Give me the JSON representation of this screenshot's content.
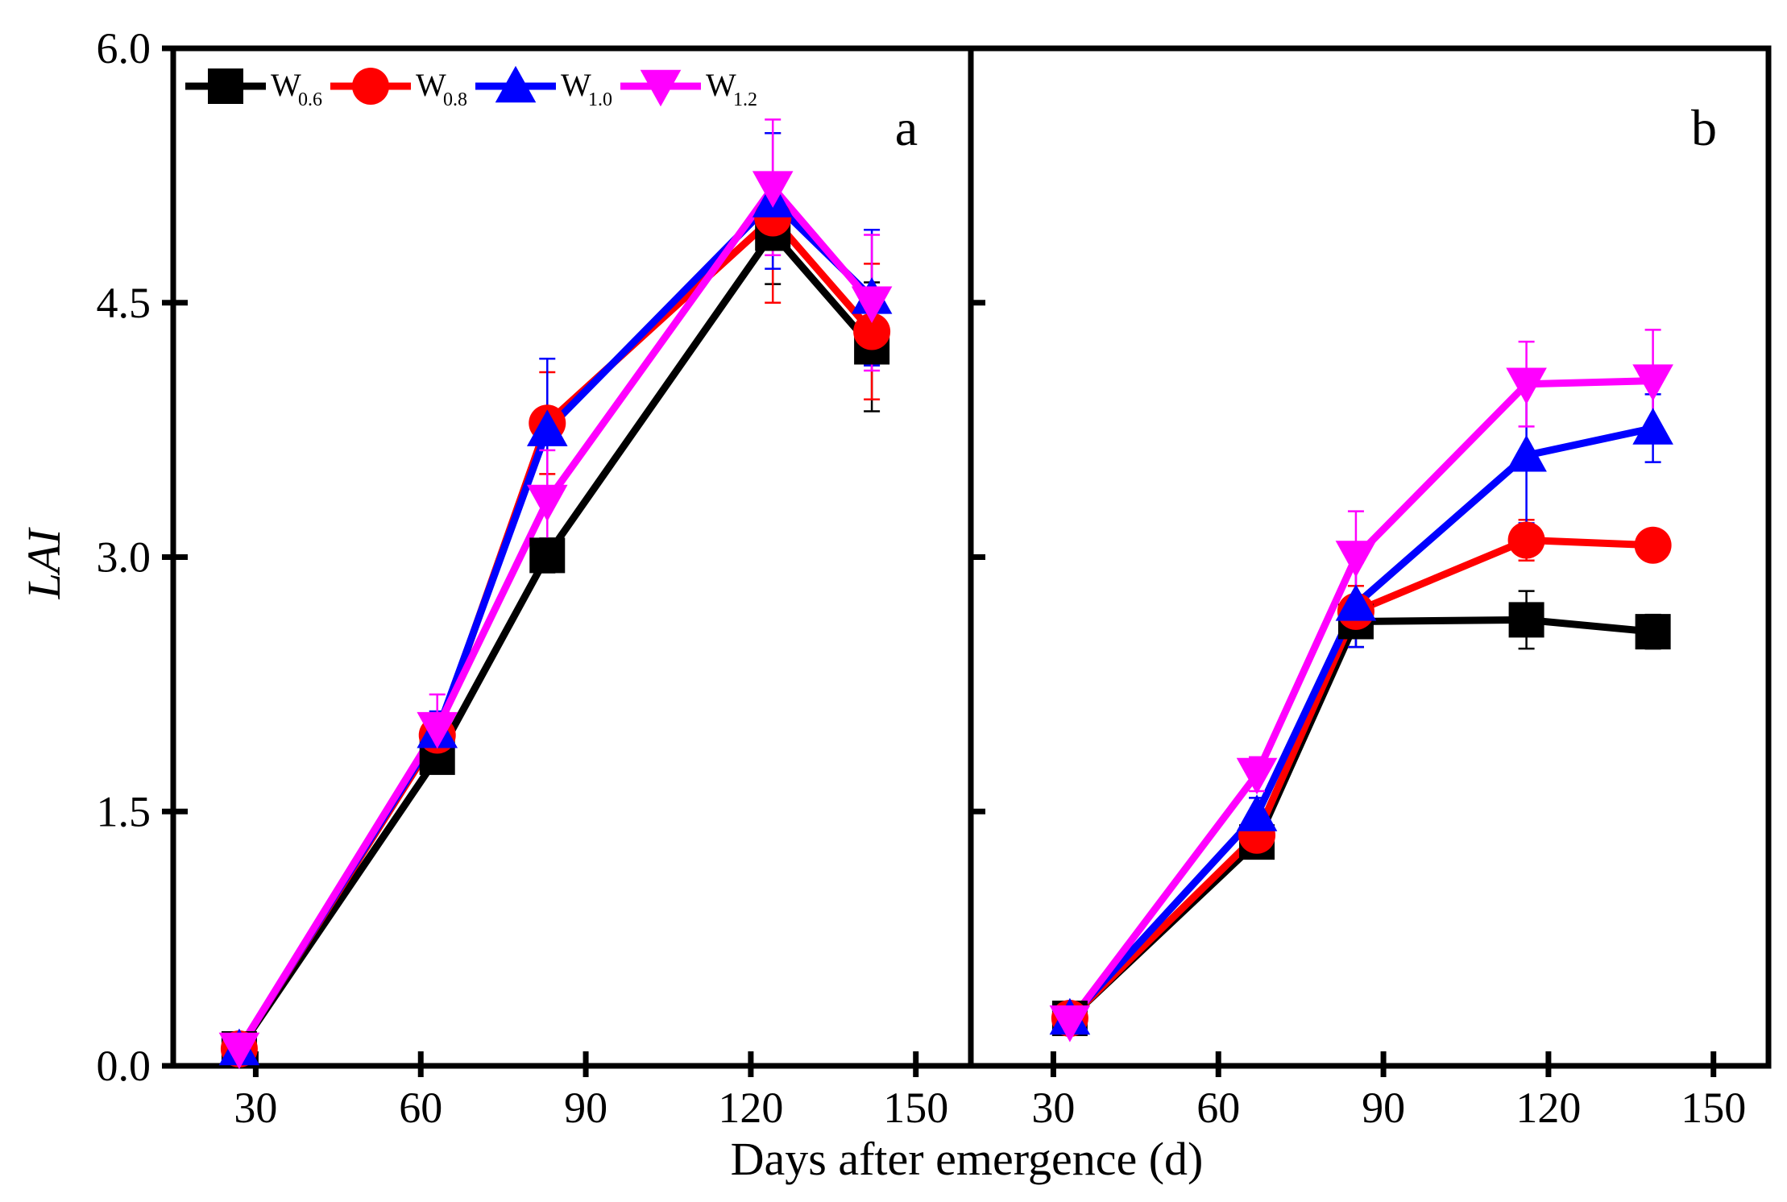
{
  "figure": {
    "ylabel": "LAI",
    "xlabel": "Days after emergence (d)"
  },
  "legend": [
    {
      "base": "W",
      "sub": "0.6",
      "color": "#000000",
      "marker": "square"
    },
    {
      "base": "W",
      "sub": "0.8",
      "color": "#ff0000",
      "marker": "circle"
    },
    {
      "base": "W",
      "sub": "1.0",
      "color": "#0000ff",
      "marker": "triangle-up"
    },
    {
      "base": "W",
      "sub": "1.2",
      "color": "#ff00ff",
      "marker": "triangle-down"
    }
  ],
  "chart_data": [
    {
      "type": "line",
      "panel_label": "a",
      "xlim": [
        15,
        160
      ],
      "ylim": [
        0,
        6
      ],
      "xticks": [
        30,
        60,
        90,
        120,
        150
      ],
      "yticks": [
        0.0,
        1.5,
        3.0,
        4.5,
        6.0
      ],
      "ytick_labels": [
        "0.0",
        "1.5",
        "3.0",
        "4.5",
        "6.0"
      ],
      "legend_position": "top-left",
      "grid": false,
      "series": [
        {
          "name": "W0.6",
          "x": [
            27,
            63,
            83,
            124,
            142
          ],
          "y": [
            0.1,
            1.82,
            3.01,
            4.91,
            4.24
          ],
          "err": [
            0.05,
            0.08,
            0.1,
            0.3,
            0.38
          ]
        },
        {
          "name": "W0.8",
          "x": [
            27,
            63,
            83,
            124,
            142
          ],
          "y": [
            0.1,
            1.95,
            3.79,
            5.0,
            4.33
          ],
          "err": [
            0.05,
            0.1,
            0.3,
            0.5,
            0.4
          ]
        },
        {
          "name": "W1.0",
          "x": [
            27,
            63,
            83,
            124,
            142
          ],
          "y": [
            0.1,
            1.97,
            3.75,
            5.1,
            4.53
          ],
          "err": [
            0.05,
            0.12,
            0.42,
            0.4,
            0.4
          ]
        },
        {
          "name": "W1.2",
          "x": [
            27,
            63,
            83,
            124,
            142
          ],
          "y": [
            0.1,
            1.99,
            3.33,
            5.18,
            4.5
          ],
          "err": [
            0.05,
            0.2,
            0.3,
            0.4,
            0.4
          ]
        }
      ]
    },
    {
      "type": "line",
      "panel_label": "b",
      "xlim": [
        15,
        160
      ],
      "ylim": [
        0,
        6
      ],
      "xticks": [
        30,
        60,
        90,
        120,
        150
      ],
      "legend_position": "none",
      "grid": false,
      "series": [
        {
          "name": "W0.6",
          "x": [
            33,
            67,
            85,
            116,
            139
          ],
          "y": [
            0.28,
            1.32,
            2.62,
            2.63,
            2.56
          ],
          "err": [
            0.05,
            0.08,
            0.15,
            0.17,
            0.1
          ]
        },
        {
          "name": "W0.8",
          "x": [
            33,
            67,
            85,
            116,
            139
          ],
          "y": [
            0.28,
            1.36,
            2.68,
            3.1,
            3.07
          ],
          "err": [
            0.05,
            0.08,
            0.15,
            0.12,
            0.08
          ]
        },
        {
          "name": "W1.0",
          "x": [
            33,
            67,
            85,
            116,
            139
          ],
          "y": [
            0.28,
            1.48,
            2.72,
            3.6,
            3.76
          ],
          "err": [
            0.05,
            0.1,
            0.25,
            0.4,
            0.2
          ]
        },
        {
          "name": "W1.2",
          "x": [
            33,
            67,
            85,
            116,
            139
          ],
          "y": [
            0.26,
            1.72,
            3.0,
            4.02,
            4.04
          ],
          "err": [
            0.05,
            0.1,
            0.27,
            0.25,
            0.3
          ]
        }
      ]
    }
  ]
}
